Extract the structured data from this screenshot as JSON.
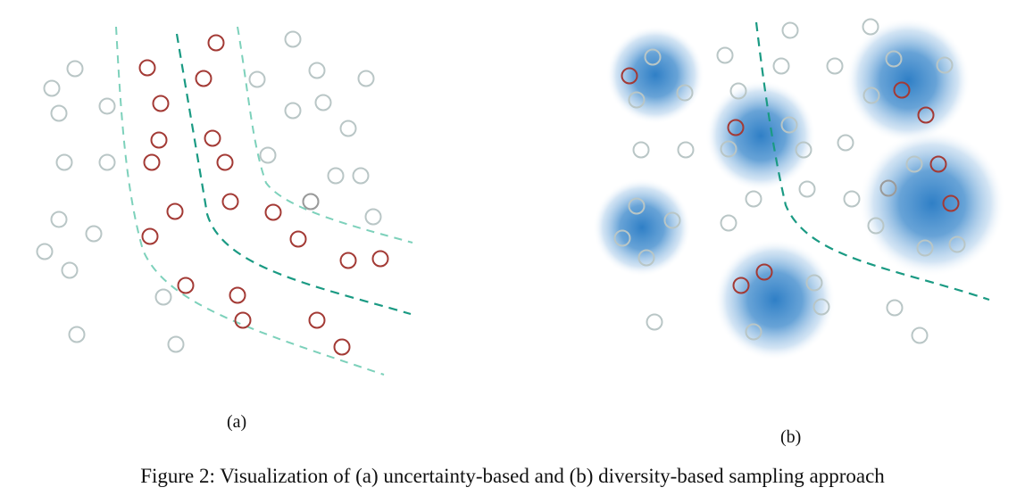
{
  "panels": {
    "a": {
      "label": "(a)"
    },
    "b": {
      "label": "(b)"
    }
  },
  "caption": "Figure 2: Visualization of (a) uncertainty-based and (b) diversity-based sampling approach",
  "colors": {
    "unlabeled_point": "#b9c6c6",
    "selected_point": "#a33a35",
    "inner_boundary": "#1a9a83",
    "outer_boundary": "#7dd1bb",
    "cluster_center": "#2f7fc6",
    "cluster_edge": "#ffffff"
  }
}
